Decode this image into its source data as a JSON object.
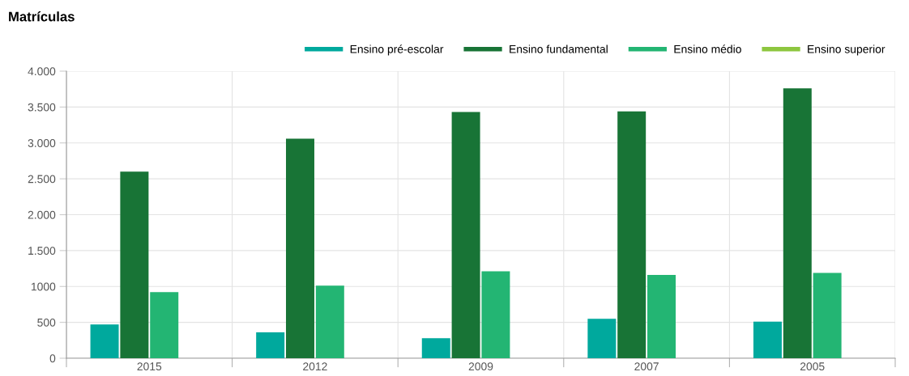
{
  "chart_data": {
    "type": "bar",
    "title": "Matrículas",
    "categories": [
      "2015",
      "2012",
      "2009",
      "2007",
      "2005"
    ],
    "series": [
      {
        "name": "Ensino pré-escolar",
        "color": "#00a99d",
        "values": [
          470,
          360,
          280,
          550,
          510
        ]
      },
      {
        "name": "Ensino fundamental",
        "color": "#187436",
        "values": [
          2600,
          3060,
          3430,
          3440,
          3760
        ]
      },
      {
        "name": "Ensino médio",
        "color": "#23b573",
        "values": [
          920,
          1010,
          1210,
          1160,
          1190
        ]
      },
      {
        "name": "Ensino superior",
        "color": "#8dc63f",
        "values": [
          null,
          null,
          null,
          null,
          null
        ]
      }
    ],
    "ylim": [
      0,
      4000
    ],
    "yticks": [
      {
        "value": 0,
        "label": "0"
      },
      {
        "value": 500,
        "label": "500"
      },
      {
        "value": 1000,
        "label": "1000"
      },
      {
        "value": 1500,
        "label": "1.500"
      },
      {
        "value": 2000,
        "label": "2.000"
      },
      {
        "value": 2500,
        "label": "2.500"
      },
      {
        "value": 3000,
        "label": "3.000"
      },
      {
        "value": 3500,
        "label": "3.500"
      },
      {
        "value": 4000,
        "label": "4.000"
      }
    ],
    "grid": true,
    "legend": "top"
  }
}
